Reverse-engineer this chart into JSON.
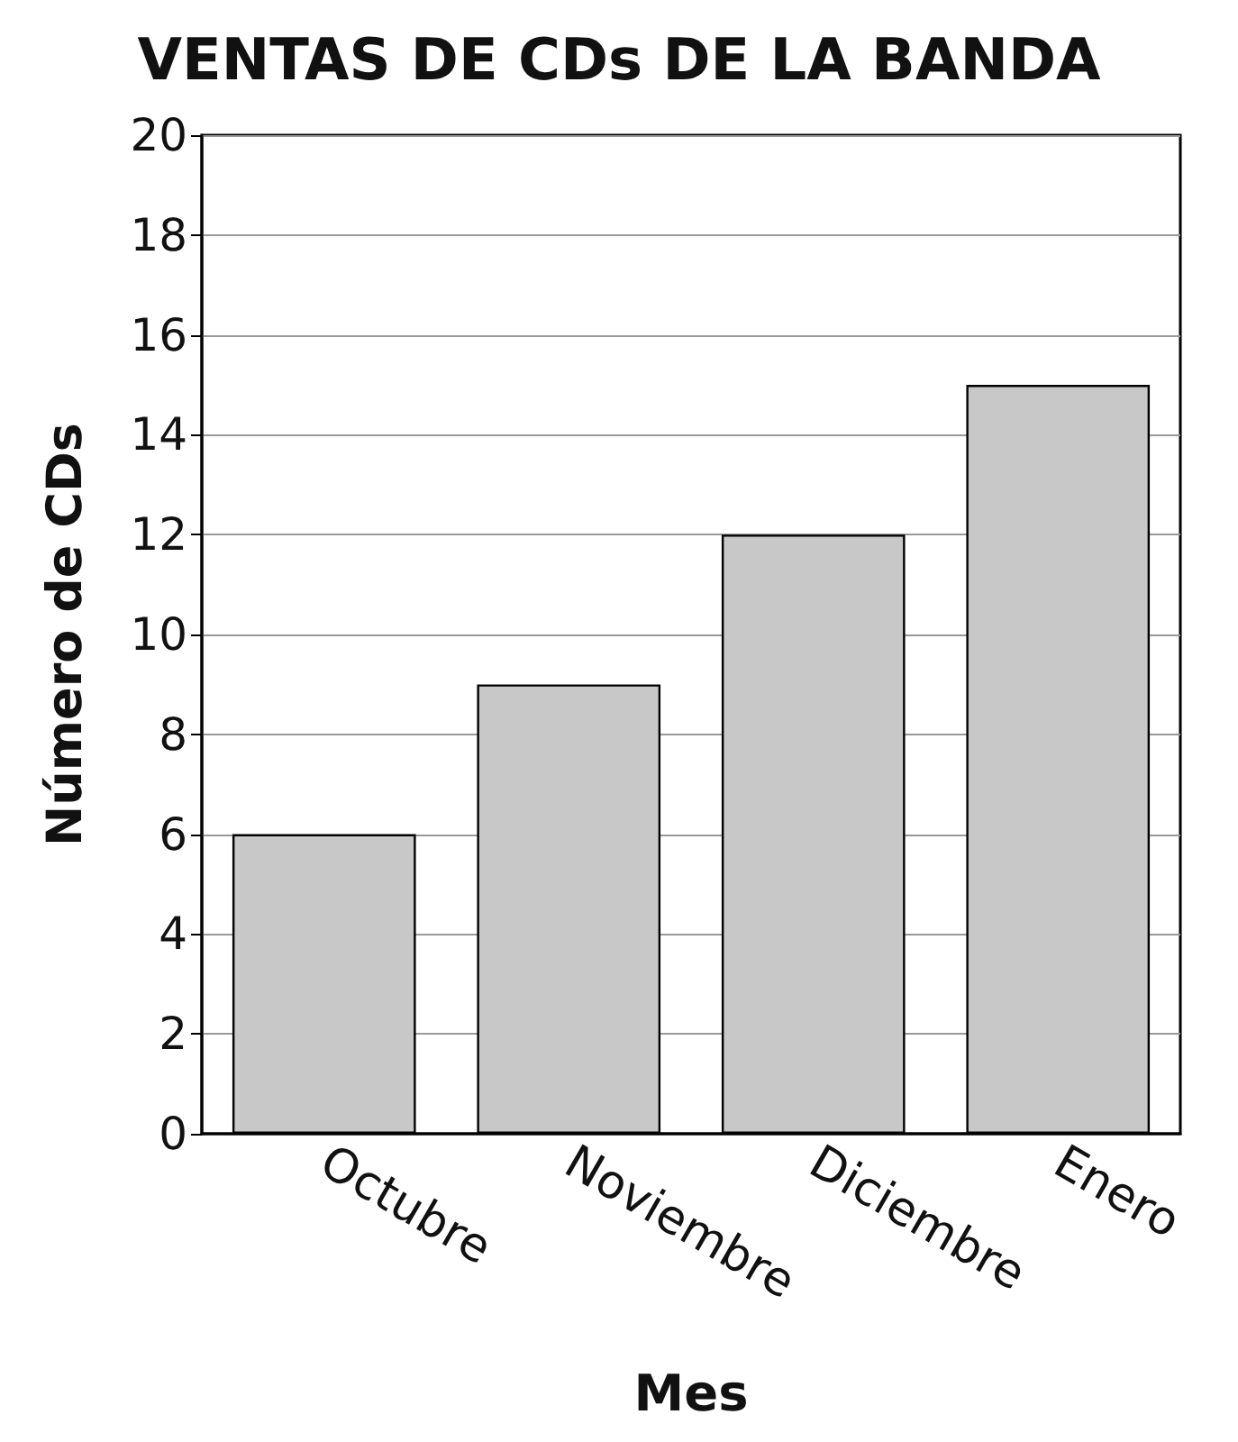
{
  "chart_data": {
    "type": "bar",
    "title": "VENTAS DE CDs DE LA BANDA",
    "xlabel": "Mes",
    "ylabel": "Número de CDs",
    "categories": [
      "Octubre",
      "Noviembre",
      "Diciembre",
      "Enero"
    ],
    "values": [
      6,
      9,
      12,
      15
    ],
    "color": "#c8c8c8",
    "ylim": [
      0,
      20
    ],
    "yticks": [
      0,
      2,
      4,
      6,
      8,
      10,
      12,
      14,
      16,
      18,
      20
    ],
    "grid": "y"
  }
}
